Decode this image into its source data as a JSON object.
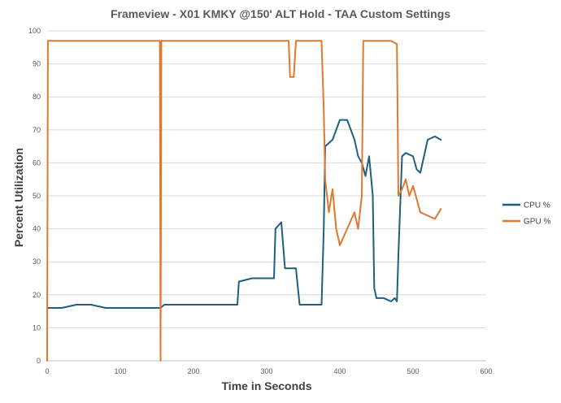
{
  "chart_data": {
    "type": "line",
    "title": "Frameview - X01 KMKY @150' ALT Hold - TAA Custom Settings",
    "xlabel": "Time in Seconds",
    "ylabel": "Percent Utilization",
    "xlim": [
      0,
      600
    ],
    "ylim": [
      0,
      100
    ],
    "x_ticks": [
      "0",
      "100",
      "200",
      "300",
      "400",
      "500",
      "600"
    ],
    "y_ticks": [
      "0",
      "10",
      "20",
      "30",
      "40",
      "50",
      "60",
      "70",
      "80",
      "90",
      "100"
    ],
    "grid": "horizontal",
    "legend_position": "right",
    "series": [
      {
        "name": "CPU %",
        "color": "#1f5f7f",
        "x": [
          0,
          20,
          40,
          60,
          80,
          100,
          120,
          140,
          155,
          160,
          180,
          200,
          220,
          240,
          260,
          262,
          280,
          300,
          310,
          312,
          320,
          325,
          330,
          340,
          345,
          350,
          360,
          375,
          378,
          380,
          390,
          400,
          410,
          420,
          425,
          430,
          435,
          440,
          445,
          447,
          450,
          460,
          470,
          475,
          478,
          480,
          485,
          490,
          500,
          505,
          510,
          520,
          530,
          538
        ],
        "y": [
          16,
          16,
          17,
          17,
          16,
          16,
          16,
          16,
          16,
          17,
          17,
          17,
          17,
          17,
          17,
          24,
          25,
          25,
          25,
          40,
          42,
          28,
          28,
          28,
          17,
          17,
          17,
          17,
          40,
          65,
          67,
          73,
          73,
          67,
          62,
          60,
          56,
          62,
          50,
          22,
          19,
          19,
          18,
          19,
          18,
          32,
          62,
          63,
          62,
          58,
          57,
          67,
          68,
          67
        ]
      },
      {
        "name": "GPU %",
        "color": "#e0782d",
        "x": [
          0,
          1,
          20,
          40,
          60,
          80,
          100,
          120,
          140,
          154,
          155,
          156,
          160,
          180,
          200,
          220,
          240,
          260,
          280,
          300,
          320,
          330,
          332,
          337,
          340,
          345,
          350,
          360,
          370,
          375,
          378,
          380,
          385,
          390,
          395,
          400,
          410,
          420,
          425,
          430,
          432,
          435,
          440,
          445,
          450,
          460,
          470,
          478,
          480,
          485,
          490,
          495,
          500,
          510,
          520,
          530,
          538
        ],
        "y": [
          0,
          97,
          97,
          97,
          97,
          97,
          97,
          97,
          97,
          97,
          0,
          97,
          97,
          97,
          97,
          97,
          97,
          97,
          97,
          97,
          97,
          97,
          86,
          86,
          97,
          97,
          97,
          97,
          97,
          97,
          76,
          55,
          45,
          52,
          40,
          35,
          40,
          45,
          40,
          50,
          97,
          97,
          97,
          97,
          97,
          97,
          97,
          96,
          50,
          52,
          55,
          50,
          53,
          45,
          44,
          43,
          46
        ]
      }
    ]
  }
}
